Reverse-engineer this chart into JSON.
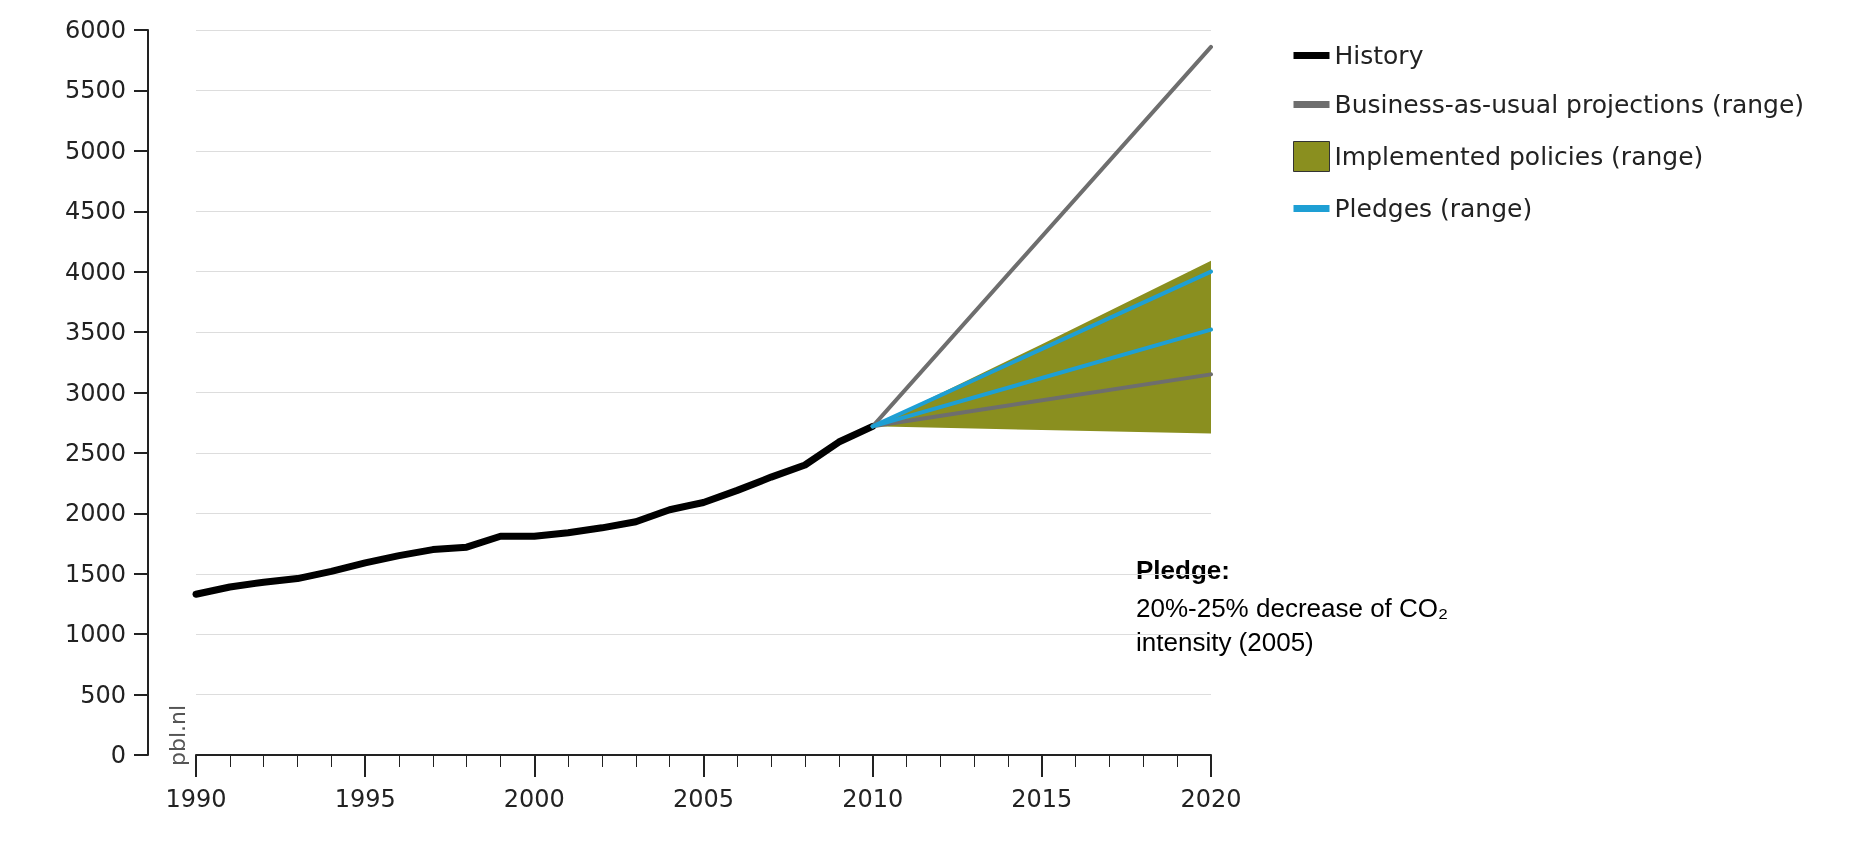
{
  "chart_data": {
    "type": "line",
    "xlim": [
      1990,
      2020
    ],
    "xticks": [
      1990,
      1995,
      2000,
      2005,
      2010,
      2015,
      2020
    ],
    "ylim": [
      0,
      6000
    ],
    "yticks": [
      0,
      500,
      1000,
      1500,
      2000,
      2500,
      3000,
      3500,
      4000,
      4500,
      5000,
      5500,
      6000
    ],
    "grid": "y",
    "legend": "right",
    "marker": "none",
    "line_style": "solid",
    "series": [
      {
        "name": "History",
        "color": "#000000",
        "x": [
          1990,
          1991,
          1992,
          1993,
          1994,
          1995,
          1996,
          1997,
          1998,
          1999,
          2000,
          2001,
          2002,
          2003,
          2004,
          2005,
          2006,
          2007,
          2008,
          2009,
          2010
        ],
        "values": [
          1330,
          1390,
          1430,
          1460,
          1520,
          1590,
          1650,
          1700,
          1720,
          1810,
          1810,
          1840,
          1880,
          1930,
          2030,
          2090,
          2190,
          2300,
          2400,
          2590,
          2720
        ]
      },
      {
        "name": "Business-as-usual projections (range)",
        "color": "#6e6e6e",
        "x": [
          2010,
          2020
        ],
        "values": [
          2720,
          5860
        ]
      },
      {
        "name": "Implemented policies (range)",
        "type": "area",
        "color": "#8a8f1f",
        "x": [
          2010,
          2015,
          2020
        ],
        "values": [
          null,
          null,
          null
        ],
        "lower": [
          2720,
          2690,
          2660
        ],
        "upper": [
          2720,
          3400,
          4090
        ]
      },
      {
        "name": "Pledges (range)",
        "color": "#1e9fd4",
        "x": [
          2010,
          2020
        ],
        "values": [
          2720,
          4000
        ]
      },
      {
        "color": "#6e6e6e",
        "x": [
          2010,
          2020
        ],
        "values": [
          2720,
          3150
        ]
      },
      {
        "color": "#1e9fd4",
        "x": [
          2010,
          2020
        ],
        "values": [
          2720,
          3520
        ]
      }
    ],
    "annotations": [
      "pbl.nl",
      "Pledge:",
      "20%-25% decrease of CO₂ intensity (2005)"
    ]
  }
}
